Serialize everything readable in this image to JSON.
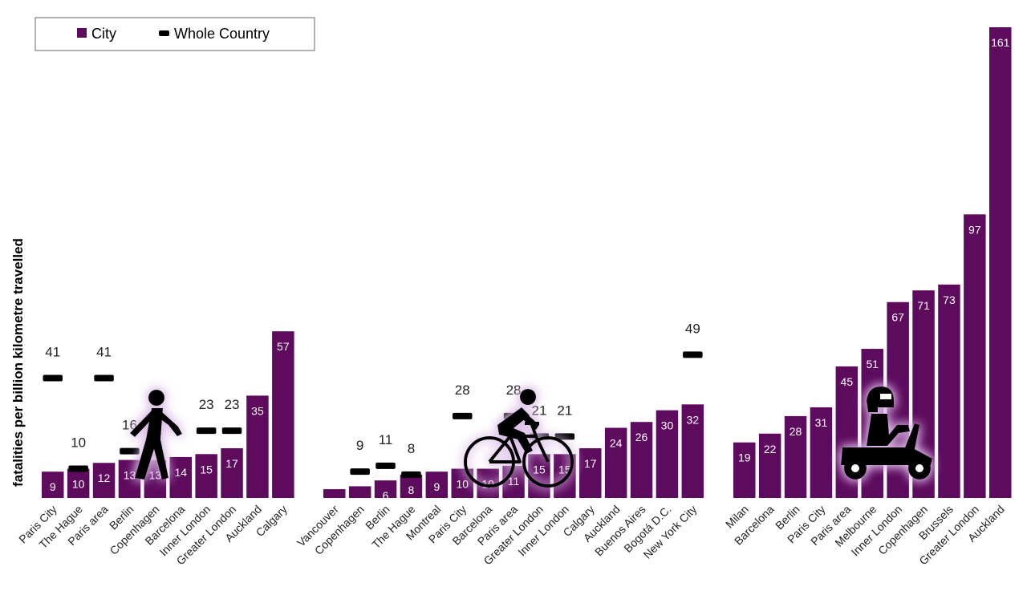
{
  "colors": {
    "city": "#5e0b5e",
    "country": "#000000",
    "glow": "#d9b8e6"
  },
  "legend": {
    "city_label": "City",
    "country_label": "Whole Country",
    "position": "top-left"
  },
  "icons": [
    "pedestrian-icon",
    "cyclist-icon",
    "motorcyclist-icon"
  ],
  "chart_data": {
    "type": "bar",
    "title": "",
    "ylabel": "fatalities per billion kilometre travelled",
    "ylim": [
      0,
      161
    ],
    "grid": false,
    "groups": [
      {
        "mode": "pedestrian",
        "icon": "pedestrian-icon",
        "categories": [
          "Paris City",
          "The Hague",
          "Paris area",
          "Berlin",
          "Copenhagen",
          "Barcelona",
          "Inner London",
          "Greater London",
          "Auckland",
          "Calgary"
        ],
        "series": [
          {
            "name": "City",
            "values": [
              9,
              10,
              12,
              13,
              13,
              14,
              15,
              17,
              35,
              57
            ]
          },
          {
            "name": "Whole Country",
            "values": [
              41,
              10,
              41,
              16,
              null,
              null,
              23,
              23,
              null,
              null
            ]
          }
        ]
      },
      {
        "mode": "cyclist",
        "icon": "cyclist-icon",
        "categories": [
          "Vancouver",
          "Copenhagen",
          "Berlin",
          "The Hague",
          "Montreal",
          "Paris City",
          "Barcelona",
          "Paris area",
          "Greater London",
          "Inner London",
          "Calgary",
          "Auckland",
          "Buenos Aires",
          "Bogotá D.C.",
          "New York City"
        ],
        "series": [
          {
            "name": "City",
            "values": [
              3,
              4,
              6,
              8,
              9,
              10,
              10,
              11,
              15,
              15,
              17,
              24,
              26,
              30,
              32
            ]
          },
          {
            "name": "Whole Country",
            "values": [
              null,
              9,
              11,
              8,
              null,
              28,
              null,
              28,
              21,
              21,
              null,
              null,
              null,
              null,
              49
            ]
          }
        ]
      },
      {
        "mode": "motorcyclist",
        "icon": "motorcyclist-icon",
        "categories": [
          "Milan",
          "Barcelona",
          "Berlin",
          "Paris City",
          "Paris area",
          "Melbourne",
          "Inner London",
          "Copenhagen",
          "Brussels",
          "Greater London",
          "Auckland"
        ],
        "series": [
          {
            "name": "City",
            "values": [
              19,
              22,
              28,
              31,
              45,
              51,
              67,
              71,
              73,
              97,
              161
            ]
          },
          {
            "name": "Whole Country",
            "values": [
              null,
              null,
              null,
              null,
              null,
              null,
              null,
              null,
              null,
              null,
              null
            ]
          }
        ]
      }
    ]
  }
}
